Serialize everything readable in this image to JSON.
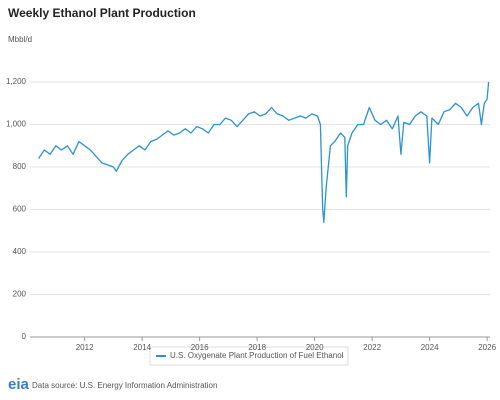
{
  "chart_data": {
    "type": "line",
    "title": "Weekly Ethanol Plant Production",
    "y_label": "Mbbl/d",
    "source": "Data source: U.S. Energy Information Administration",
    "logo": "eia",
    "x": [
      2010.4,
      2010.6,
      2010.8,
      2011.0,
      2011.2,
      2011.4,
      2011.6,
      2011.8,
      2012.0,
      2012.2,
      2012.4,
      2012.6,
      2012.8,
      2013.0,
      2013.1,
      2013.3,
      2013.5,
      2013.7,
      2013.9,
      2014.1,
      2014.3,
      2014.5,
      2014.7,
      2014.9,
      2015.1,
      2015.3,
      2015.5,
      2015.7,
      2015.9,
      2016.1,
      2016.3,
      2016.5,
      2016.7,
      2016.9,
      2017.1,
      2017.3,
      2017.5,
      2017.7,
      2017.9,
      2018.1,
      2018.3,
      2018.5,
      2018.7,
      2018.9,
      2019.1,
      2019.3,
      2019.5,
      2019.7,
      2019.9,
      2020.1,
      2020.2,
      2020.28,
      2020.32,
      2020.4,
      2020.55,
      2020.7,
      2020.9,
      2021.05,
      2021.1,
      2021.15,
      2021.3,
      2021.5,
      2021.7,
      2021.9,
      2022.1,
      2022.3,
      2022.5,
      2022.7,
      2022.9,
      2023.0,
      2023.1,
      2023.3,
      2023.5,
      2023.7,
      2023.9,
      2024.0,
      2024.08,
      2024.3,
      2024.5,
      2024.7,
      2024.9,
      2025.1,
      2025.3,
      2025.5,
      2025.7,
      2025.8,
      2025.9,
      2026.0,
      2026.05
    ],
    "series": [
      {
        "name": "U.S. Oxygenate Plant Production of Fuel Ethanol",
        "color": "#2a93d5",
        "values": [
          840,
          880,
          860,
          900,
          880,
          900,
          860,
          920,
          900,
          880,
          850,
          820,
          810,
          800,
          780,
          830,
          860,
          880,
          900,
          880,
          920,
          930,
          950,
          970,
          950,
          960,
          980,
          960,
          990,
          980,
          960,
          1000,
          1000,
          1030,
          1020,
          990,
          1020,
          1050,
          1060,
          1040,
          1050,
          1080,
          1050,
          1040,
          1020,
          1030,
          1040,
          1030,
          1050,
          1040,
          1000,
          600,
          540,
          700,
          900,
          920,
          960,
          940,
          660,
          900,
          960,
          1000,
          1000,
          1080,
          1020,
          1000,
          1020,
          980,
          1040,
          860,
          1010,
          1000,
          1040,
          1060,
          1040,
          820,
          1030,
          1000,
          1060,
          1070,
          1100,
          1080,
          1040,
          1080,
          1100,
          1000,
          1100,
          1120,
          1200
        ]
      }
    ],
    "xlim": [
      2010.1,
      2026.1
    ],
    "xticks": [
      2012,
      2014,
      2016,
      2018,
      2020,
      2022,
      2024,
      2026
    ],
    "ylim": [
      0,
      1200
    ],
    "yticks": [
      0,
      200,
      400,
      600,
      800,
      {
        "value": 1000,
        "label": "1,000"
      },
      {
        "value": 1200,
        "label": "1,200"
      }
    ],
    "grid": true
  }
}
